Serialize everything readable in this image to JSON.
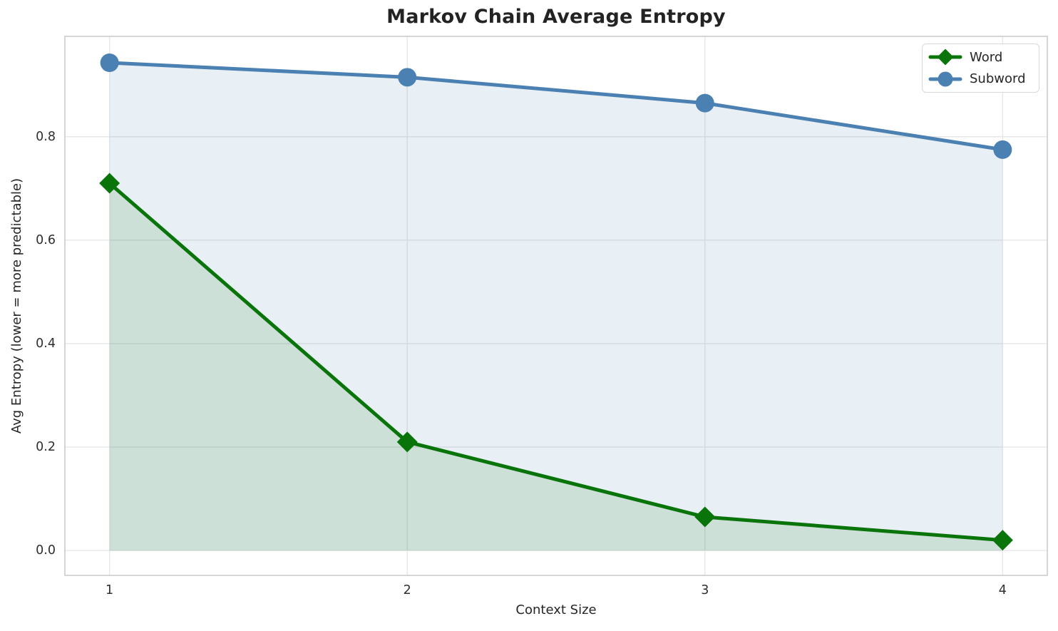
{
  "chart_data": {
    "type": "line",
    "title": "Markov Chain Average Entropy",
    "xlabel": "Context Size",
    "ylabel": "Avg Entropy (lower = more predictable)",
    "x": [
      1,
      2,
      3,
      4
    ],
    "x_ticks": [
      "1",
      "2",
      "3",
      "4"
    ],
    "y_ticks": [
      "0.0",
      "0.2",
      "0.4",
      "0.6",
      "0.8"
    ],
    "y_tick_values": [
      0,
      0.2,
      0.4,
      0.6,
      0.8
    ],
    "xlim": [
      0.85,
      4.15
    ],
    "ylim": [
      -0.048,
      0.994
    ],
    "grid": true,
    "legend": {
      "position": "upper-right"
    },
    "series": [
      {
        "name": "Word",
        "marker": "diamond",
        "color": "#097409",
        "fill_opacity": 0.12,
        "values": [
          0.71,
          0.21,
          0.065,
          0.02
        ]
      },
      {
        "name": "Subword",
        "marker": "circle",
        "color": "#4b81b2",
        "fill_opacity": 0.13,
        "values": [
          0.943,
          0.915,
          0.865,
          0.775
        ]
      }
    ],
    "colors": {
      "grid": "#e7e7e7",
      "spine": "#cbcbcb",
      "text": "#262626",
      "background": "#ffffff"
    }
  }
}
